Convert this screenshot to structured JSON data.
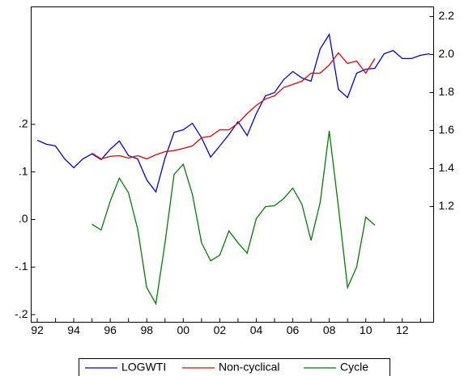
{
  "chart_data": {
    "type": "line",
    "categories": [
      "92",
      null,
      null,
      null,
      "94",
      null,
      null,
      null,
      "96",
      null,
      null,
      null,
      "98",
      null,
      null,
      null,
      "00",
      null,
      null,
      null,
      "02",
      null,
      null,
      null,
      "04",
      null,
      null,
      null,
      "06",
      null,
      null,
      null,
      "08",
      null,
      null,
      null,
      "10",
      null,
      null,
      null,
      "12",
      null,
      null,
      null
    ],
    "series": [
      {
        "name": "LOGWTI",
        "color": "#0000ee",
        "axis": "y2",
        "values": [
          1.549,
          1.528,
          1.519,
          1.451,
          1.404,
          1.451,
          1.477,
          1.447,
          1.502,
          1.545,
          1.468,
          1.451,
          1.34,
          1.277,
          1.455,
          1.591,
          1.604,
          1.638,
          1.562,
          1.46,
          1.519,
          1.579,
          1.647,
          1.574,
          1.689,
          1.783,
          1.8,
          1.868,
          1.911,
          1.877,
          1.86,
          2.03,
          2.106,
          1.817,
          1.774,
          1.902,
          1.923,
          1.928,
          2.004,
          2.021,
          1.979,
          1.979,
          1.996,
          2.004
        ]
      },
      {
        "name": "Non-cyclical",
        "color": "#ee0000",
        "axis": "y2",
        "values": [
          null,
          null,
          null,
          null,
          null,
          null,
          1.481,
          1.451,
          1.464,
          1.468,
          1.455,
          1.468,
          1.451,
          1.472,
          1.489,
          1.494,
          1.506,
          1.519,
          1.562,
          1.57,
          1.604,
          1.604,
          1.638,
          1.689,
          1.732,
          1.766,
          1.783,
          1.826,
          1.843,
          1.86,
          1.902,
          1.902,
          1.945,
          2.009,
          1.953,
          1.966,
          1.902,
          1.979,
          null,
          null,
          null,
          null,
          null,
          null
        ]
      },
      {
        "name": "Cycle",
        "color": "#008000",
        "axis": "y",
        "values": [
          null,
          null,
          null,
          null,
          null,
          null,
          -0.01,
          -0.022,
          0.039,
          0.087,
          0.056,
          -0.02,
          -0.143,
          -0.177,
          -0.049,
          0.095,
          0.116,
          0.053,
          -0.049,
          -0.087,
          -0.075,
          -0.024,
          -0.049,
          -0.071,
          0.002,
          0.027,
          0.029,
          0.044,
          0.066,
          0.032,
          -0.044,
          0.036,
          0.186,
          0.027,
          -0.143,
          -0.1,
          0.005,
          -0.012,
          null,
          null,
          null,
          null,
          null,
          null
        ]
      }
    ],
    "ylim": [
      -0.216,
      0.447
    ],
    "yticks": [
      {
        "value": 0.2,
        "label": ".2"
      },
      {
        "value": 0.1,
        "label": ".1"
      },
      {
        "value": 0,
        "label": ".0"
      },
      {
        "value": -0.1,
        "label": "-.1"
      },
      {
        "value": -0.2,
        "label": "-.2"
      }
    ],
    "y2lim": [
      0.591,
      2.251
    ],
    "y2ticks": [
      2.2,
      {
        "value": 2,
        "label": "2.0"
      },
      1.8,
      1.6,
      1.4,
      1.2
    ],
    "legend": "bottom"
  }
}
